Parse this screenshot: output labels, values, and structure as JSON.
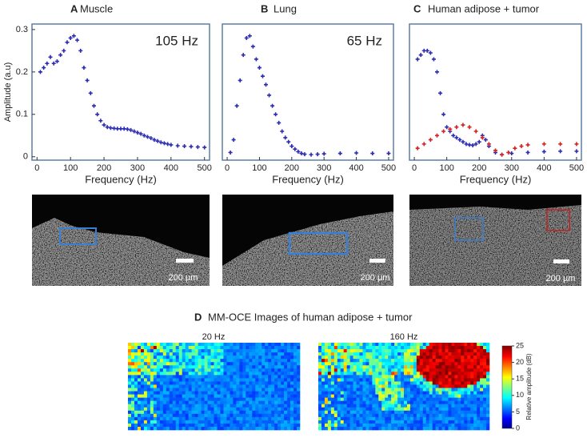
{
  "chart_data": [
    {
      "type": "scatter",
      "panel": "A",
      "title": "Muscle",
      "annotation": "105 Hz",
      "xlabel": "Frequency (Hz)",
      "ylabel": "Amplitude  (a.u)",
      "xlim": [
        -15,
        515
      ],
      "ylim": [
        -0.008,
        0.313
      ],
      "xticks": [
        0,
        100,
        200,
        300,
        400,
        500
      ],
      "yticks": [
        0,
        0.1,
        0.2,
        0.3
      ],
      "series": [
        {
          "color": "#2b2bb0",
          "x": [
            10,
            20,
            30,
            40,
            50,
            60,
            70,
            80,
            90,
            100,
            110,
            120,
            130,
            140,
            150,
            160,
            170,
            180,
            190,
            200,
            210,
            220,
            230,
            240,
            250,
            260,
            270,
            280,
            290,
            300,
            310,
            320,
            330,
            340,
            350,
            360,
            370,
            380,
            390,
            400,
            420,
            440,
            460,
            480,
            500
          ],
          "values": [
            0.2,
            0.21,
            0.22,
            0.235,
            0.22,
            0.225,
            0.24,
            0.25,
            0.27,
            0.28,
            0.285,
            0.275,
            0.25,
            0.21,
            0.18,
            0.15,
            0.12,
            0.1,
            0.085,
            0.075,
            0.07,
            0.068,
            0.067,
            0.066,
            0.066,
            0.066,
            0.065,
            0.063,
            0.06,
            0.057,
            0.054,
            0.05,
            0.047,
            0.044,
            0.04,
            0.037,
            0.034,
            0.032,
            0.03,
            0.028,
            0.026,
            0.025,
            0.024,
            0.023,
            0.022
          ]
        }
      ]
    },
    {
      "type": "scatter",
      "panel": "B",
      "title": "Lung",
      "annotation": "65 Hz",
      "xlabel": "Frequency (Hz)",
      "xlim": [
        -15,
        515
      ],
      "ylim": [
        -0.008,
        0.313
      ],
      "xticks": [
        0,
        100,
        200,
        300,
        400,
        500
      ],
      "series": [
        {
          "color": "#2b2bb0",
          "x": [
            10,
            20,
            30,
            40,
            50,
            60,
            70,
            80,
            90,
            100,
            110,
            120,
            130,
            140,
            150,
            160,
            170,
            180,
            190,
            200,
            210,
            220,
            230,
            240,
            260,
            280,
            300,
            350,
            400,
            450,
            500
          ],
          "values": [
            0.01,
            0.04,
            0.12,
            0.18,
            0.24,
            0.28,
            0.285,
            0.26,
            0.23,
            0.21,
            0.19,
            0.17,
            0.145,
            0.12,
            0.1,
            0.08,
            0.06,
            0.045,
            0.035,
            0.025,
            0.018,
            0.012,
            0.008,
            0.006,
            0.005,
            0.006,
            0.007,
            0.008,
            0.009,
            0.008,
            0.008
          ]
        }
      ]
    },
    {
      "type": "scatter",
      "panel": "C",
      "title": "Human adipose + tumor",
      "xlabel": "Frequency (Hz)",
      "xlim": [
        -15,
        515
      ],
      "ylim": [
        -0.008,
        0.313
      ],
      "xticks": [
        0,
        100,
        200,
        300,
        400,
        500
      ],
      "series": [
        {
          "color": "#2b2bb0",
          "x": [
            10,
            20,
            30,
            40,
            50,
            60,
            70,
            80,
            90,
            100,
            110,
            120,
            130,
            140,
            150,
            160,
            170,
            180,
            190,
            200,
            210,
            220,
            230,
            250,
            270,
            300,
            350,
            400,
            450,
            500
          ],
          "values": [
            0.23,
            0.24,
            0.25,
            0.25,
            0.245,
            0.23,
            0.2,
            0.15,
            0.1,
            0.07,
            0.06,
            0.05,
            0.045,
            0.04,
            0.035,
            0.03,
            0.028,
            0.027,
            0.03,
            0.035,
            0.05,
            0.04,
            0.025,
            0.01,
            0.005,
            0.008,
            0.01,
            0.012,
            0.013,
            0.013
          ]
        },
        {
          "color": "#d42020",
          "x": [
            10,
            30,
            50,
            70,
            90,
            110,
            130,
            150,
            170,
            190,
            210,
            230,
            250,
            270,
            290,
            310,
            330,
            350,
            400,
            450,
            500
          ],
          "values": [
            0.02,
            0.03,
            0.04,
            0.05,
            0.06,
            0.065,
            0.07,
            0.075,
            0.07,
            0.06,
            0.045,
            0.03,
            0.015,
            0.005,
            0.01,
            0.02,
            0.025,
            0.028,
            0.03,
            0.03,
            0.03
          ]
        }
      ]
    }
  ],
  "images": [
    {
      "scale_label": "200 µm"
    },
    {
      "scale_label": "200 µm"
    },
    {
      "scale_label": "200 µm"
    }
  ],
  "panel_d": {
    "panel": "D",
    "title": "MM-OCE Images of human adipose + tumor",
    "maps": [
      {
        "label": "20 Hz"
      },
      {
        "label": "160 Hz"
      }
    ],
    "colorbar": {
      "label": "Relative amplitude (dB)",
      "clim": [
        0,
        25
      ],
      "ticks": [
        0,
        5,
        10,
        15,
        20,
        25
      ]
    }
  }
}
